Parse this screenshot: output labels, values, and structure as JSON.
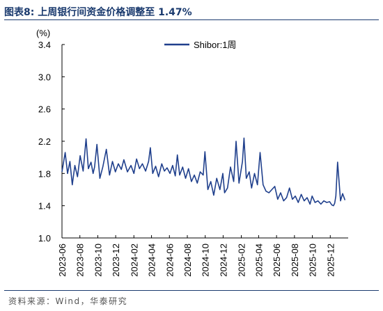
{
  "header": {
    "title": "图表8:   上周银行间资金价格调整至 1.47%"
  },
  "footer": {
    "source": "资料来源：Wind，华泰研究"
  },
  "colors": {
    "series": "#1f3f8c",
    "title": "#1a3a6e",
    "axis": "#000000"
  },
  "chart_data": {
    "type": "line",
    "title": "上周银行间资金价格调整至 1.47%",
    "ylabel": "(%)",
    "xlabel": "",
    "ylim": [
      1.0,
      3.4
    ],
    "yticks": [
      1.0,
      1.4,
      1.8,
      2.2,
      2.6,
      3.0,
      3.4
    ],
    "ytick_labels": [
      "1.0",
      "1.4",
      "1.8",
      "2.2",
      "2.6",
      "3.0",
      "3.4"
    ],
    "xlim": [
      "2023-06-01",
      "2026-01-31"
    ],
    "xticks": [
      "2023-06",
      "2023-08",
      "2023-10",
      "2023-12",
      "2024-02",
      "2024-04",
      "2024-06",
      "2024-08",
      "2024-10",
      "2024-12",
      "2025-02",
      "2025-04",
      "2025-06",
      "2025-08",
      "2025-10",
      "2025-12"
    ],
    "grid": false,
    "legend": "top-center",
    "series": [
      {
        "name": "Shibor:1周",
        "x": [
          "2023-06-01",
          "2023-06-12",
          "2023-06-20",
          "2023-06-28",
          "2023-07-06",
          "2023-07-15",
          "2023-07-24",
          "2023-08-02",
          "2023-08-12",
          "2023-08-22",
          "2023-08-30",
          "2023-09-08",
          "2023-09-15",
          "2023-09-20",
          "2023-09-28",
          "2023-10-08",
          "2023-10-18",
          "2023-10-30",
          "2023-11-10",
          "2023-11-20",
          "2023-11-30",
          "2023-12-10",
          "2023-12-20",
          "2023-12-29",
          "2024-01-10",
          "2024-01-22",
          "2024-02-01",
          "2024-02-10",
          "2024-02-20",
          "2024-03-01",
          "2024-03-12",
          "2024-03-22",
          "2024-03-28",
          "2024-04-05",
          "2024-04-15",
          "2024-04-25",
          "2024-05-06",
          "2024-05-15",
          "2024-05-24",
          "2024-06-03",
          "2024-06-12",
          "2024-06-21",
          "2024-06-28",
          "2024-07-06",
          "2024-07-16",
          "2024-07-26",
          "2024-08-05",
          "2024-08-15",
          "2024-08-25",
          "2024-09-04",
          "2024-09-14",
          "2024-09-24",
          "2024-09-30",
          "2024-10-10",
          "2024-10-20",
          "2024-10-30",
          "2024-11-09",
          "2024-11-20",
          "2024-11-30",
          "2024-12-06",
          "2024-12-16",
          "2024-12-26",
          "2025-01-06",
          "2025-01-14",
          "2025-01-24",
          "2025-02-05",
          "2025-02-10",
          "2025-02-18",
          "2025-02-28",
          "2025-03-08",
          "2025-03-18",
          "2025-03-28",
          "2025-04-06",
          "2025-04-16",
          "2025-04-26",
          "2025-05-06",
          "2025-05-16",
          "2025-05-26",
          "2025-06-05",
          "2025-06-15",
          "2025-06-25",
          "2025-07-05",
          "2025-07-15",
          "2025-07-25",
          "2025-08-04",
          "2025-08-14",
          "2025-08-24",
          "2025-09-03",
          "2025-09-13",
          "2025-09-23",
          "2025-09-30",
          "2025-10-10",
          "2025-10-20",
          "2025-10-30",
          "2025-11-09",
          "2025-11-19",
          "2025-11-29",
          "2025-12-06",
          "2025-12-12",
          "2025-12-16",
          "2025-12-20",
          "2025-12-26",
          "2026-01-05",
          "2026-01-12",
          "2026-01-20"
        ],
        "values": [
          1.82,
          2.06,
          1.8,
          1.95,
          1.66,
          1.9,
          1.76,
          2.02,
          1.83,
          2.23,
          1.86,
          1.94,
          1.8,
          1.88,
          2.16,
          1.74,
          1.88,
          2.1,
          1.78,
          1.95,
          1.82,
          1.92,
          1.85,
          1.97,
          1.82,
          1.9,
          1.8,
          1.98,
          1.86,
          1.92,
          1.83,
          1.95,
          2.12,
          1.8,
          1.89,
          1.76,
          1.92,
          1.83,
          1.87,
          1.8,
          1.9,
          1.77,
          2.03,
          1.78,
          1.88,
          1.74,
          1.86,
          1.7,
          1.78,
          1.68,
          1.82,
          1.78,
          2.07,
          1.6,
          1.7,
          1.53,
          1.74,
          1.6,
          1.8,
          1.56,
          1.62,
          1.88,
          1.7,
          2.2,
          1.68,
          1.95,
          2.24,
          1.74,
          1.82,
          1.62,
          1.8,
          1.66,
          2.06,
          1.66,
          1.58,
          1.56,
          1.6,
          1.64,
          1.48,
          1.56,
          1.46,
          1.5,
          1.62,
          1.48,
          1.52,
          1.44,
          1.54,
          1.46,
          1.5,
          1.42,
          1.52,
          1.44,
          1.46,
          1.42,
          1.46,
          1.44,
          1.45,
          1.41,
          1.4,
          1.43,
          1.52,
          1.94,
          1.46,
          1.55,
          1.47
        ]
      }
    ]
  }
}
